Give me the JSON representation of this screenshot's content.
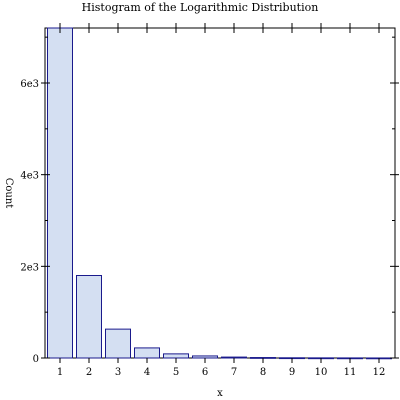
{
  "chart_data": {
    "type": "bar",
    "title": "Histogram of the Logarithmic Distribution",
    "xlabel": "x",
    "ylabel": "Count",
    "categories": [
      "1",
      "2",
      "3",
      "4",
      "5",
      "6",
      "7",
      "8",
      "9",
      "10",
      "11",
      "12"
    ],
    "values": [
      7200,
      1800,
      630,
      220,
      90,
      45,
      20,
      10,
      5,
      3,
      2,
      1
    ],
    "ylim": [
      0,
      7200
    ],
    "yticks": [
      0,
      2000,
      4000,
      6000
    ],
    "ytick_labels": [
      "0",
      "2e3",
      "4e3",
      "6e3"
    ],
    "grid": false,
    "legend": false,
    "colors": {
      "bar_fill": "#d4dff2",
      "bar_stroke": "#1a1a8c",
      "axis": "#000000",
      "background": "#ffffff"
    }
  }
}
